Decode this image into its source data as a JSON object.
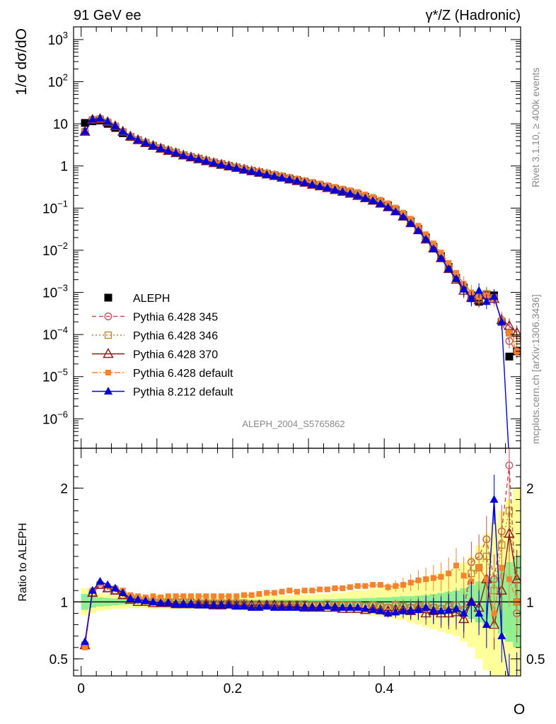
{
  "header": {
    "left": "91 GeV ee",
    "right": "γ*/Z (Hadronic)"
  },
  "side_labels": {
    "rivet": "Rivet 3.1.10, ≥ 400k events",
    "mcplots": "mcplots.cern.ch [arXiv:1306.3436]"
  },
  "watermark": "ALEPH_2004_S5765862",
  "colors": {
    "data": "#000000",
    "p345": "#c0505a",
    "p346": "#b8862b",
    "p370": "#8b1a1a",
    "p6def": "#f58231",
    "p8def": "#0000dd",
    "band_green": "#90f090",
    "band_yellow": "#ffff99"
  },
  "chart_data": [
    {
      "type": "scatter",
      "panel": "main",
      "ylabel": "1/σ  dσ/dO",
      "yscale": "log",
      "ylim": [
        2e-07,
        2000
      ],
      "xlim": [
        -0.01,
        0.58
      ],
      "y_tick_labels": [
        "10^3",
        "10^2",
        "10",
        "1",
        "10^-1",
        "10^-2",
        "10^-3",
        "10^-4",
        "10^-5",
        "10^-6"
      ],
      "legend_position": "lower-left",
      "x": [
        0.005,
        0.015,
        0.025,
        0.035,
        0.045,
        0.055,
        0.065,
        0.075,
        0.085,
        0.095,
        0.105,
        0.115,
        0.125,
        0.135,
        0.145,
        0.155,
        0.165,
        0.175,
        0.185,
        0.195,
        0.205,
        0.215,
        0.225,
        0.235,
        0.245,
        0.255,
        0.265,
        0.275,
        0.285,
        0.295,
        0.305,
        0.315,
        0.325,
        0.335,
        0.345,
        0.355,
        0.365,
        0.375,
        0.385,
        0.395,
        0.405,
        0.415,
        0.425,
        0.435,
        0.445,
        0.455,
        0.465,
        0.475,
        0.485,
        0.495,
        0.505,
        0.515,
        0.525,
        0.535,
        0.545,
        0.555,
        0.565,
        0.575
      ],
      "series": [
        {
          "name": "ALEPH",
          "key": "data",
          "marker": "square",
          "values": [
            10.5,
            11.5,
            12,
            10,
            8,
            6,
            4.9,
            4.1,
            3.5,
            3.0,
            2.6,
            2.3,
            2.05,
            1.8,
            1.62,
            1.48,
            1.33,
            1.2,
            1.1,
            1.0,
            0.92,
            0.84,
            0.77,
            0.71,
            0.65,
            0.6,
            0.55,
            0.5,
            0.46,
            0.42,
            0.38,
            0.345,
            0.315,
            0.285,
            0.26,
            0.235,
            0.21,
            0.185,
            0.16,
            0.138,
            0.115,
            0.09,
            0.068,
            0.048,
            0.032,
            0.02,
            0.012,
            0.0072,
            0.004,
            0.0022,
            0.0013,
            0.00085,
            0.0006,
            0.0009,
            0.00085,
            0.0002,
            3e-05,
            4e-05
          ]
        },
        {
          "name": "Pythia 6.428 345",
          "key": "p345",
          "marker": "circle-open",
          "dash": "6,4",
          "values": [
            6.5,
            12.5,
            13,
            11,
            8.8,
            6.5,
            5.0,
            4.15,
            3.55,
            3.05,
            2.6,
            2.3,
            2.05,
            1.8,
            1.62,
            1.47,
            1.32,
            1.19,
            1.09,
            0.99,
            0.91,
            0.83,
            0.76,
            0.7,
            0.64,
            0.59,
            0.54,
            0.49,
            0.45,
            0.41,
            0.37,
            0.34,
            0.31,
            0.28,
            0.255,
            0.23,
            0.205,
            0.18,
            0.157,
            0.133,
            0.11,
            0.088,
            0.066,
            0.046,
            0.031,
            0.019,
            0.0115,
            0.0068,
            0.0038,
            0.0021,
            0.0012,
            0.0008,
            0.0007,
            0.0009,
            0.00075,
            0.0002,
            7e-05,
            4e-05
          ]
        },
        {
          "name": "Pythia 6.428 346",
          "key": "p346",
          "marker": "square-open",
          "dash": "2,3",
          "values": [
            6.5,
            12.5,
            13,
            11,
            8.8,
            6.5,
            5.0,
            4.15,
            3.55,
            3.05,
            2.6,
            2.3,
            2.05,
            1.8,
            1.62,
            1.47,
            1.32,
            1.19,
            1.09,
            0.99,
            0.91,
            0.83,
            0.76,
            0.7,
            0.64,
            0.59,
            0.54,
            0.49,
            0.45,
            0.41,
            0.37,
            0.34,
            0.31,
            0.28,
            0.255,
            0.23,
            0.205,
            0.18,
            0.157,
            0.133,
            0.11,
            0.088,
            0.066,
            0.046,
            0.031,
            0.019,
            0.0115,
            0.0068,
            0.0038,
            0.0021,
            0.0012,
            0.0008,
            0.0007,
            0.0009,
            0.00075,
            0.0002,
            0.00011,
            8e-05
          ]
        },
        {
          "name": "Pythia 6.428 370",
          "key": "p370",
          "marker": "triangle-open",
          "dash": "",
          "values": [
            6.5,
            12.5,
            13,
            11,
            8.8,
            6.5,
            5.0,
            4.1,
            3.5,
            3.0,
            2.58,
            2.28,
            2.02,
            1.78,
            1.6,
            1.45,
            1.3,
            1.17,
            1.07,
            0.98,
            0.9,
            0.82,
            0.75,
            0.69,
            0.63,
            0.58,
            0.53,
            0.48,
            0.44,
            0.4,
            0.36,
            0.33,
            0.3,
            0.27,
            0.245,
            0.22,
            0.195,
            0.172,
            0.15,
            0.128,
            0.105,
            0.084,
            0.063,
            0.044,
            0.03,
            0.018,
            0.011,
            0.0065,
            0.0036,
            0.002,
            0.0011,
            0.00075,
            0.00065,
            0.00085,
            0.0007,
            0.00022,
            0.00016,
            0.00011
          ]
        },
        {
          "name": "Pythia 6.428 default",
          "key": "p6def",
          "marker": "square-filled",
          "dash": "8,3,2,3",
          "values": [
            6.3,
            12.5,
            13.2,
            11.2,
            9.0,
            6.7,
            5.15,
            4.3,
            3.65,
            3.15,
            2.7,
            2.4,
            2.15,
            1.9,
            1.7,
            1.55,
            1.4,
            1.26,
            1.15,
            1.05,
            0.97,
            0.89,
            0.82,
            0.76,
            0.7,
            0.65,
            0.6,
            0.55,
            0.5,
            0.46,
            0.42,
            0.385,
            0.35,
            0.32,
            0.29,
            0.265,
            0.24,
            0.21,
            0.185,
            0.158,
            0.13,
            0.103,
            0.078,
            0.056,
            0.038,
            0.024,
            0.0145,
            0.0088,
            0.005,
            0.0029,
            0.0016,
            0.001,
            0.00078,
            0.00085,
            0.0007,
            0.00023,
            0.00011,
            4e-05
          ]
        },
        {
          "name": "Pythia 8.212 default",
          "key": "p8def",
          "marker": "triangle-filled",
          "dash": "",
          "values": [
            6.5,
            12.8,
            13.5,
            11.3,
            8.9,
            6.6,
            5.05,
            4.15,
            3.55,
            3.02,
            2.6,
            2.28,
            2.02,
            1.78,
            1.6,
            1.44,
            1.3,
            1.17,
            1.07,
            0.97,
            0.89,
            0.81,
            0.74,
            0.68,
            0.62,
            0.57,
            0.52,
            0.48,
            0.44,
            0.4,
            0.36,
            0.33,
            0.3,
            0.27,
            0.245,
            0.22,
            0.196,
            0.172,
            0.149,
            0.127,
            0.104,
            0.082,
            0.062,
            0.043,
            0.029,
            0.0182,
            0.0108,
            0.0064,
            0.0036,
            0.0021,
            0.0012,
            0.0007,
            0.0011,
            0.0006,
            0.0008,
            0.0002,
            1e-07,
            1e-07
          ]
        }
      ]
    },
    {
      "type": "scatter",
      "panel": "ratio",
      "ylabel": "Ratio to ALEPH",
      "ylim": [
        0.35,
        2.35
      ],
      "xlim": [
        -0.01,
        0.58
      ],
      "xlabel": "O",
      "x_tick_labels": [
        "0",
        "0.2",
        "0.4"
      ],
      "y_tick_labels": [
        "0.5",
        "1",
        "2"
      ],
      "x": [
        0.005,
        0.015,
        0.025,
        0.035,
        0.045,
        0.055,
        0.065,
        0.075,
        0.085,
        0.095,
        0.105,
        0.115,
        0.125,
        0.135,
        0.145,
        0.155,
        0.165,
        0.175,
        0.185,
        0.195,
        0.205,
        0.215,
        0.225,
        0.235,
        0.245,
        0.255,
        0.265,
        0.275,
        0.285,
        0.295,
        0.305,
        0.315,
        0.325,
        0.335,
        0.345,
        0.355,
        0.365,
        0.375,
        0.385,
        0.395,
        0.405,
        0.415,
        0.425,
        0.435,
        0.445,
        0.455,
        0.465,
        0.475,
        0.485,
        0.495,
        0.505,
        0.515,
        0.525,
        0.535,
        0.545,
        0.555,
        0.565,
        0.575
      ],
      "band_green": [
        0.07,
        0.05,
        0.04,
        0.035,
        0.03,
        0.025,
        0.02,
        0.02,
        0.02,
        0.02,
        0.02,
        0.02,
        0.02,
        0.02,
        0.02,
        0.02,
        0.02,
        0.02,
        0.02,
        0.02,
        0.02,
        0.02,
        0.02,
        0.02,
        0.02,
        0.02,
        0.02,
        0.02,
        0.02,
        0.02,
        0.02,
        0.02,
        0.025,
        0.025,
        0.03,
        0.03,
        0.03,
        0.035,
        0.035,
        0.04,
        0.04,
        0.045,
        0.05,
        0.05,
        0.055,
        0.06,
        0.07,
        0.08,
        0.09,
        0.1,
        0.12,
        0.15,
        0.18,
        0.2,
        0.22,
        0.28,
        0.35,
        0.4
      ],
      "band_yellow": [
        0.12,
        0.1,
        0.08,
        0.07,
        0.06,
        0.06,
        0.055,
        0.055,
        0.055,
        0.06,
        0.06,
        0.06,
        0.06,
        0.06,
        0.06,
        0.06,
        0.06,
        0.06,
        0.06,
        0.06,
        0.06,
        0.06,
        0.06,
        0.06,
        0.06,
        0.06,
        0.06,
        0.06,
        0.065,
        0.065,
        0.065,
        0.07,
        0.07,
        0.08,
        0.08,
        0.09,
        0.1,
        0.1,
        0.12,
        0.13,
        0.14,
        0.15,
        0.16,
        0.18,
        0.2,
        0.22,
        0.24,
        0.26,
        0.28,
        0.3,
        0.35,
        0.4,
        0.5,
        0.6,
        0.7,
        0.8,
        0.9,
        1.0
      ],
      "series": [
        {
          "key": "p345",
          "marker": "circle-open",
          "dash": "6,4",
          "values": [
            0.62,
            1.08,
            1.15,
            1.12,
            1.1,
            1.06,
            1.04,
            1.02,
            1.01,
            1.0,
            1.0,
            1.0,
            1.0,
            1.0,
            1.0,
            0.99,
            0.99,
            0.99,
            0.99,
            0.99,
            0.99,
            0.99,
            0.98,
            0.98,
            0.98,
            0.98,
            0.98,
            0.98,
            0.98,
            0.98,
            0.97,
            0.97,
            0.98,
            0.97,
            0.97,
            0.97,
            0.97,
            0.96,
            0.97,
            0.96,
            0.95,
            0.97,
            0.96,
            0.95,
            0.96,
            0.97,
            0.95,
            0.94,
            0.96,
            0.97,
            0.93,
            1.35,
            1.4,
            1.55,
            1.2,
            1.62,
            2.2,
            0.9
          ]
        },
        {
          "key": "p346",
          "marker": "square-open",
          "dash": "2,3",
          "values": [
            0.62,
            1.08,
            1.15,
            1.12,
            1.1,
            1.06,
            1.04,
            1.02,
            1.01,
            1.0,
            1.0,
            1.0,
            1.0,
            1.0,
            1.0,
            0.99,
            0.99,
            0.99,
            0.99,
            0.99,
            0.99,
            0.99,
            0.98,
            0.98,
            0.98,
            0.98,
            0.98,
            0.98,
            0.98,
            0.98,
            0.97,
            0.97,
            0.98,
            0.97,
            0.97,
            0.97,
            0.97,
            0.96,
            0.97,
            0.96,
            0.95,
            0.97,
            0.96,
            0.95,
            0.96,
            0.97,
            0.95,
            0.94,
            0.96,
            0.97,
            0.93,
            1.25,
            1.3,
            1.4,
            1.1,
            1.5,
            1.8,
            1.0
          ]
        },
        {
          "key": "p370",
          "marker": "triangle-open",
          "dash": "",
          "values": [
            0.62,
            1.08,
            1.15,
            1.12,
            1.1,
            1.06,
            1.02,
            1.0,
            1.0,
            0.99,
            0.99,
            0.99,
            0.98,
            0.98,
            0.98,
            0.98,
            0.98,
            0.97,
            0.97,
            0.98,
            0.97,
            0.97,
            0.97,
            0.97,
            0.97,
            0.97,
            0.96,
            0.96,
            0.96,
            0.95,
            0.95,
            0.95,
            0.95,
            0.95,
            0.94,
            0.94,
            0.94,
            0.93,
            0.94,
            0.93,
            0.92,
            0.93,
            0.93,
            0.92,
            0.94,
            0.9,
            0.92,
            0.9,
            0.9,
            0.91,
            0.85,
            1.0,
            0.95,
            1.2,
            0.8,
            1.1,
            1.6,
            1.2
          ]
        },
        {
          "key": "p6def",
          "marker": "square-filled",
          "dash": "8,3,2,3",
          "values": [
            0.6,
            1.1,
            1.16,
            1.14,
            1.12,
            1.1,
            1.06,
            1.05,
            1.04,
            1.05,
            1.04,
            1.05,
            1.05,
            1.05,
            1.05,
            1.05,
            1.05,
            1.05,
            1.05,
            1.05,
            1.05,
            1.06,
            1.06,
            1.07,
            1.08,
            1.08,
            1.09,
            1.1,
            1.09,
            1.1,
            1.1,
            1.11,
            1.11,
            1.12,
            1.12,
            1.13,
            1.14,
            1.14,
            1.15,
            1.15,
            1.13,
            1.14,
            1.15,
            1.17,
            1.19,
            1.2,
            1.21,
            1.22,
            1.25,
            1.32,
            1.23,
            1.18,
            1.3,
            1.2,
            0.9,
            1.3,
            1.2,
            1.0
          ]
        },
        {
          "key": "p8def",
          "marker": "triangle-filled",
          "dash": "",
          "values": [
            0.65,
            1.1,
            1.18,
            1.15,
            1.12,
            1.08,
            1.03,
            1.02,
            1.01,
            1.0,
            0.99,
            0.99,
            0.98,
            0.98,
            0.98,
            0.97,
            0.97,
            0.97,
            0.97,
            0.97,
            0.96,
            0.96,
            0.95,
            0.95,
            0.96,
            0.95,
            0.95,
            0.95,
            0.95,
            0.95,
            0.95,
            0.95,
            0.96,
            0.95,
            0.95,
            0.95,
            0.95,
            0.94,
            0.93,
            0.92,
            0.9,
            0.91,
            0.92,
            0.92,
            0.93,
            0.95,
            0.92,
            0.92,
            0.93,
            0.94,
            0.9,
            1.0,
            0.9,
            0.8,
            1.9,
            0.7,
            0.3,
            0.3
          ]
        }
      ]
    }
  ]
}
